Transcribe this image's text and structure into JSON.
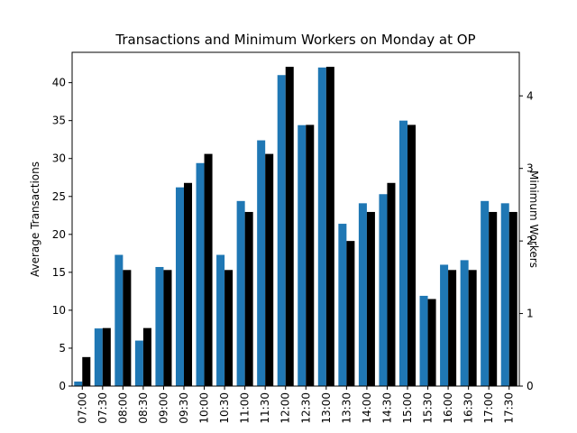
{
  "chart_data": {
    "type": "bar",
    "title": "Transactions and Minimum Workers on Monday at OP",
    "ylabel": "Average Transactions",
    "y2label": "Minimum Workers",
    "xlabel": "",
    "categories": [
      "07:00",
      "07:30",
      "08:00",
      "08:30",
      "09:00",
      "09:30",
      "10:00",
      "10:30",
      "11:00",
      "11:30",
      "12:00",
      "12:30",
      "13:00",
      "13:30",
      "14:00",
      "14:30",
      "15:00",
      "15:30",
      "16:00",
      "16:30",
      "17:00",
      "17:30"
    ],
    "ylim": [
      0,
      44
    ],
    "y2lim": [
      0,
      4.6
    ],
    "yticks": [
      0,
      5,
      10,
      15,
      20,
      25,
      30,
      35,
      40
    ],
    "y2ticks": [
      0,
      1,
      2,
      3,
      4
    ],
    "grid": false,
    "series": [
      {
        "name": "",
        "axis": "left",
        "color": "#1f77b4",
        "values": [
          0.6,
          7.6,
          17.3,
          6.0,
          15.7,
          26.2,
          29.4,
          17.3,
          24.4,
          32.4,
          41.0,
          34.4,
          42.0,
          21.4,
          24.1,
          25.3,
          35.0,
          11.9,
          16.0,
          16.6,
          24.4,
          24.1
        ]
      },
      {
        "name": "",
        "axis": "right",
        "color": "#000000",
        "values": [
          0.4,
          0.8,
          1.6,
          0.8,
          1.6,
          2.8,
          3.2,
          1.6,
          2.4,
          3.2,
          4.4,
          3.6,
          4.4,
          2.0,
          2.4,
          2.8,
          3.6,
          1.2,
          1.6,
          1.6,
          2.4,
          2.4
        ]
      }
    ]
  }
}
